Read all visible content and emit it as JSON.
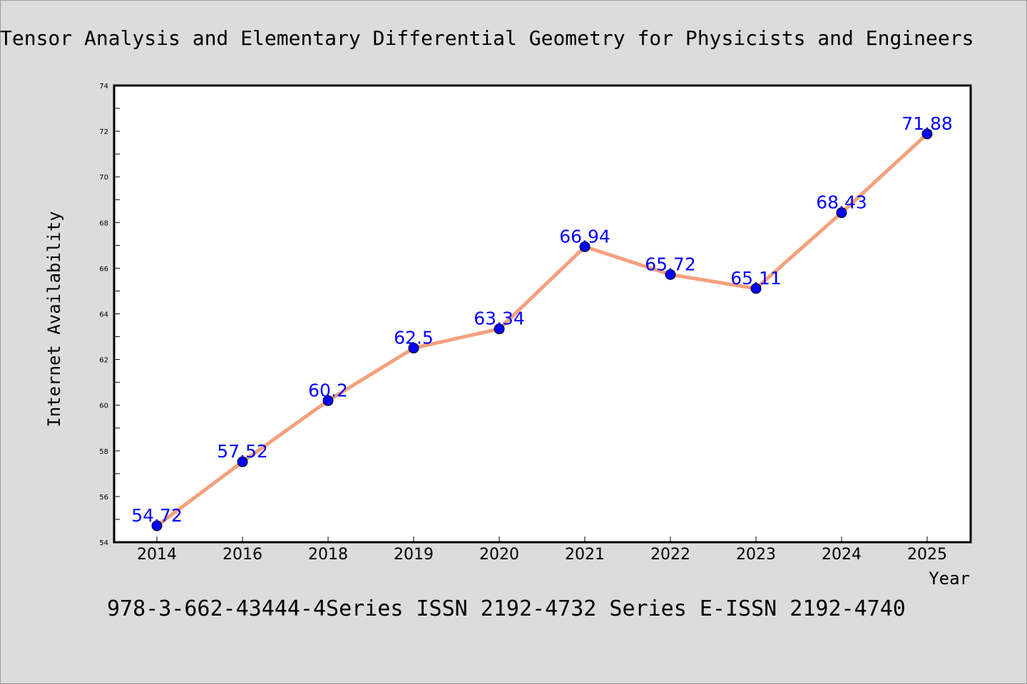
{
  "colors": {
    "background": "#dcdcdc",
    "plot_background": "#ffffff",
    "line": "#f4a07c",
    "marker": "#0000ff",
    "data_label": "#0000ff"
  },
  "chart_data": {
    "type": "line",
    "title": "Tensor Analysis and Elementary Differential Geometry for Physicists and Engineers",
    "xlabel": "Year",
    "ylabel": "Internet Availability",
    "categories": [
      "2014",
      "2016",
      "2018",
      "2019",
      "2020",
      "2021",
      "2022",
      "2023",
      "2024",
      "2025"
    ],
    "values": [
      54.72,
      57.52,
      60.2,
      62.5,
      63.34,
      66.94,
      65.72,
      65.11,
      68.43,
      71.88
    ],
    "data_labels": [
      "54.72",
      "57.52",
      "60.2",
      "62.5",
      "63.34",
      "66.94",
      "65.72",
      "65.11",
      "68.43",
      "71.88"
    ],
    "ylim": [
      54,
      74
    ],
    "yticks": [
      54,
      56,
      58,
      60,
      62,
      64,
      66,
      68,
      70,
      72,
      74
    ],
    "grid": false,
    "legend": "none"
  },
  "footer": {
    "text": "978-3-662-43444-4Series ISSN 2192-4732 Series E-ISSN 2192-4740"
  }
}
